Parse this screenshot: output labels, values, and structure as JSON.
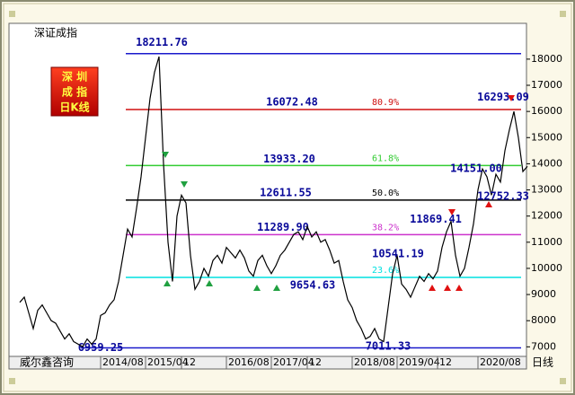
{
  "chart_data": {
    "type": "line",
    "title": "深证成指",
    "source": "威尔鑫咨询",
    "box_lines": [
      "深 圳",
      "成 指",
      "日K线"
    ],
    "x_unit_label": "日线",
    "categories": [
      null,
      null,
      null,
      null,
      null,
      null,
      null,
      null,
      null,
      null,
      null,
      null,
      null,
      null,
      null,
      null,
      null,
      null,
      "2014/08",
      null,
      null,
      null,
      null,
      null,
      null,
      null,
      null,
      null,
      "2015/04",
      null,
      null,
      null,
      null,
      null,
      null,
      null,
      "12",
      null,
      null,
      null,
      null,
      null,
      null,
      null,
      null,
      null,
      "2016/08",
      null,
      null,
      null,
      null,
      null,
      null,
      null,
      null,
      null,
      "2017/04",
      null,
      null,
      null,
      null,
      null,
      null,
      null,
      "12",
      null,
      null,
      null,
      null,
      null,
      null,
      null,
      null,
      null,
      "2018/08",
      null,
      null,
      null,
      null,
      null,
      null,
      null,
      null,
      null,
      "2019/04",
      null,
      null,
      null,
      null,
      null,
      null,
      null,
      null,
      "12",
      null,
      null,
      null,
      null,
      null,
      null,
      null,
      null,
      "2020/08",
      null,
      null,
      null,
      null,
      null,
      null,
      null,
      null,
      null,
      null,
      null
    ],
    "series": [
      {
        "name": "深证成指",
        "color": "#000000",
        "values": [
          8700,
          8900,
          8300,
          7700,
          8400,
          8600,
          8300,
          8000,
          7900,
          7600,
          7300,
          7500,
          7200,
          7100,
          7000,
          7300,
          7100,
          7300,
          8200,
          8300,
          8600,
          8800,
          9500,
          10500,
          11500,
          11200,
          12300,
          13500,
          15000,
          16500,
          17500,
          18100,
          14000,
          11000,
          9500,
          12000,
          12800,
          12500,
          10500,
          9200,
          9500,
          10000,
          9700,
          10300,
          10500,
          10200,
          10800,
          10600,
          10400,
          10700,
          10400,
          9900,
          9700,
          10300,
          10500,
          10100,
          9800,
          10100,
          10500,
          10700,
          11000,
          11300,
          11400,
          11100,
          11600,
          11200,
          11400,
          11000,
          11100,
          10700,
          10200,
          10300,
          9500,
          8800,
          8500,
          8000,
          7700,
          7300,
          7400,
          7700,
          7300,
          7200,
          8500,
          9800,
          10500,
          9400,
          9200,
          8900,
          9300,
          9700,
          9500,
          9800,
          9600,
          9900,
          10800,
          11400,
          11800,
          10500,
          9700,
          10000,
          10800,
          11700,
          13000,
          13800,
          13500,
          12800,
          13600,
          13300,
          14500,
          15300,
          16000,
          15000,
          13700,
          13900
        ]
      }
    ],
    "ylim": [
      6600,
      19300
    ],
    "yticks": [
      7000,
      8000,
      9000,
      10000,
      11000,
      12000,
      13000,
      14000,
      15000,
      16000,
      17000,
      18000
    ],
    "levels": [
      {
        "value": 18211.76,
        "label": "18211.76",
        "color": "#1a1acc"
      },
      {
        "value": 16072.48,
        "label": "16072.48",
        "color": "#d01010",
        "pct_label": "80.9%"
      },
      {
        "value": 13933.2,
        "label": "13933.20",
        "color": "#33cc33",
        "pct_label": "61.8%"
      },
      {
        "value": 12611.55,
        "label": "12611.55",
        "color": "#000000",
        "pct_label": "50.0%"
      },
      {
        "value": 11289.9,
        "label": "11289.90",
        "color": "#cc33cc",
        "pct_label": "38.2%"
      },
      {
        "value": 9654.63,
        "label": "9654.63",
        "color": "#00e0e0",
        "pct_label": "23.6%"
      },
      {
        "value": 6959.25,
        "label": "6959.25",
        "color": "#1a1acc"
      }
    ],
    "point_labels": [
      {
        "value": 16293.09,
        "label": "16293.09"
      },
      {
        "value": 14151.0,
        "label": "14151.00"
      },
      {
        "value": 12752.33,
        "label": "12752.33"
      },
      {
        "value": 11869.41,
        "label": "11869.41"
      },
      {
        "value": 10541.19,
        "label": "10541.19"
      },
      {
        "value": 7011.33,
        "label": "7011.33"
      }
    ]
  }
}
